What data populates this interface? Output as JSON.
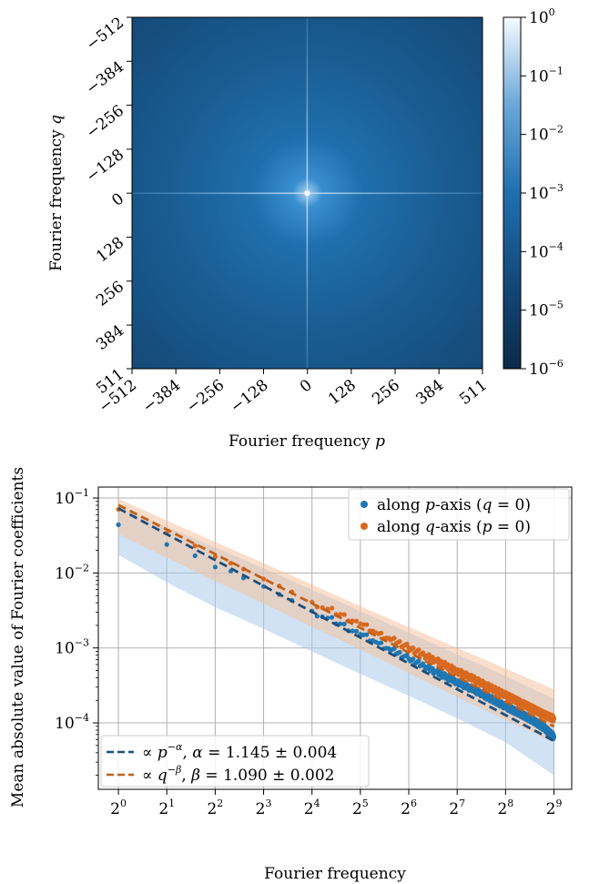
{
  "chart_data": [
    {
      "type": "heatmap",
      "title": "",
      "xlabel": "Fourier frequency",
      "xlabel_var": "p",
      "ylabel": "Fourier frequency",
      "ylabel_var": "q",
      "x_ticks": [
        "−512",
        "−384",
        "−256",
        "−128",
        "0",
        "128",
        "256",
        "384",
        "511"
      ],
      "y_ticks": [
        "−512",
        "−384",
        "−256",
        "−128",
        "0",
        "128",
        "256",
        "384",
        "511"
      ],
      "xlim": [
        -512,
        511
      ],
      "ylim": [
        -512,
        511
      ],
      "y_inverted": true,
      "colorbar": {
        "scale": "log",
        "range": [
          1e-06,
          1
        ],
        "ticks": [
          {
            "value": 1,
            "base": "10",
            "exp": "0"
          },
          {
            "value": 0.1,
            "base": "10",
            "exp": "−1"
          },
          {
            "value": 0.01,
            "base": "10",
            "exp": "−2"
          },
          {
            "value": 0.001,
            "base": "10",
            "exp": "−3"
          },
          {
            "value": 0.0001,
            "base": "10",
            "exp": "−4"
          },
          {
            "value": 1e-05,
            "base": "10",
            "exp": "−5"
          },
          {
            "value": 1e-06,
            "base": "10",
            "exp": "−6"
          }
        ],
        "colors": [
          "#0b2a47",
          "#1f6fb0",
          "#f7fbff"
        ]
      },
      "description_values": {
        "center_peak": 0.1,
        "background": 1e-05
      }
    },
    {
      "type": "scatter",
      "xscale": "log2",
      "yscale": "log",
      "xlabel": "Fourier frequency",
      "ylabel": "Mean absolute value of Fourier coefficients",
      "xlim": [
        0.75,
        660
      ],
      "ylim": [
        1.3e-05,
        0.14
      ],
      "grid": true,
      "x_ticks": [
        {
          "value": 1,
          "base": "2",
          "exp": "0"
        },
        {
          "value": 2,
          "base": "2",
          "exp": "1"
        },
        {
          "value": 4,
          "base": "2",
          "exp": "2"
        },
        {
          "value": 8,
          "base": "2",
          "exp": "3"
        },
        {
          "value": 16,
          "base": "2",
          "exp": "4"
        },
        {
          "value": 32,
          "base": "2",
          "exp": "5"
        },
        {
          "value": 64,
          "base": "2",
          "exp": "6"
        },
        {
          "value": 128,
          "base": "2",
          "exp": "7"
        },
        {
          "value": 256,
          "base": "2",
          "exp": "8"
        },
        {
          "value": 512,
          "base": "2",
          "exp": "9"
        }
      ],
      "y_ticks": [
        {
          "value": 0.1,
          "base": "10",
          "exp": "−1"
        },
        {
          "value": 0.01,
          "base": "10",
          "exp": "−2"
        },
        {
          "value": 0.001,
          "base": "10",
          "exp": "−3"
        },
        {
          "value": 0.0001,
          "base": "10",
          "exp": "−4"
        }
      ],
      "series": [
        {
          "name": "along p-axis (q = 0)",
          "color": "#1f77b4",
          "points": [
            [
              1,
              0.044
            ],
            [
              2,
              0.024
            ],
            [
              3,
              0.017
            ],
            [
              4,
              0.012
            ],
            [
              5,
              0.0106
            ],
            [
              6,
              0.0086
            ],
            [
              8,
              0.0066
            ],
            [
              10,
              0.0052
            ],
            [
              12,
              0.0043
            ],
            [
              16,
              0.0031
            ],
            [
              20,
              0.0025
            ],
            [
              24,
              0.0021
            ],
            [
              32,
              0.00152
            ],
            [
              40,
              0.0012
            ],
            [
              48,
              0.00098
            ],
            [
              64,
              0.00072
            ],
            [
              80,
              0.00057
            ],
            [
              96,
              0.00047
            ],
            [
              128,
              0.00035
            ],
            [
              160,
              0.00028
            ],
            [
              192,
              0.00023
            ],
            [
              256,
              0.000165
            ],
            [
              320,
              0.000131
            ],
            [
              384,
              0.000106
            ],
            [
              448,
              8.5e-05
            ],
            [
              512,
              6.5e-05
            ]
          ],
          "band_lower": [
            [
              1,
              0.0175
            ],
            [
              2,
              0.0075
            ],
            [
              4,
              0.0035
            ],
            [
              8,
              0.0018
            ],
            [
              16,
              0.0009
            ],
            [
              32,
              0.00045
            ],
            [
              64,
              0.00023
            ],
            [
              128,
              0.000115
            ],
            [
              256,
              5.5e-05
            ],
            [
              512,
              2e-05
            ]
          ],
          "band_upper": [
            [
              1,
              0.075
            ],
            [
              2,
              0.041
            ],
            [
              4,
              0.022
            ],
            [
              8,
              0.0115
            ],
            [
              16,
              0.006
            ],
            [
              32,
              0.0031
            ],
            [
              64,
              0.0016
            ],
            [
              128,
              0.00082
            ],
            [
              256,
              0.00042
            ],
            [
              512,
              0.00021
            ]
          ]
        },
        {
          "name": "along q-axis (p = 0)",
          "color": "#d9691f",
          "points": [
            [
              1,
              0.0705
            ],
            [
              2,
              0.034
            ],
            [
              3,
              0.023
            ],
            [
              4,
              0.0165
            ],
            [
              5,
              0.0135
            ],
            [
              6,
              0.0113
            ],
            [
              8,
              0.0083
            ],
            [
              10,
              0.0067
            ],
            [
              12,
              0.0056
            ],
            [
              16,
              0.0041
            ],
            [
              20,
              0.0033
            ],
            [
              24,
              0.0028
            ],
            [
              32,
              0.0021
            ],
            [
              40,
              0.0016
            ],
            [
              48,
              0.00135
            ],
            [
              64,
              0.00101
            ],
            [
              80,
              0.0008
            ],
            [
              96,
              0.00067
            ],
            [
              128,
              0.00049
            ],
            [
              160,
              0.00039
            ],
            [
              192,
              0.00032
            ],
            [
              256,
              0.000235
            ],
            [
              320,
              0.000185
            ],
            [
              384,
              0.000152
            ],
            [
              448,
              0.000128
            ],
            [
              512,
              0.000114
            ]
          ],
          "band_lower": [
            [
              1,
              0.033
            ],
            [
              2,
              0.016
            ],
            [
              4,
              0.0078
            ],
            [
              8,
              0.0039
            ],
            [
              16,
              0.0019
            ],
            [
              32,
              0.00095
            ],
            [
              64,
              0.00046
            ],
            [
              128,
              0.00022
            ],
            [
              256,
              0.00011
            ],
            [
              512,
              5.5e-05
            ]
          ],
          "band_upper": [
            [
              1,
              0.098
            ],
            [
              2,
              0.05
            ],
            [
              4,
              0.026
            ],
            [
              8,
              0.0135
            ],
            [
              16,
              0.007
            ],
            [
              32,
              0.0036
            ],
            [
              64,
              0.0019
            ],
            [
              128,
              0.001
            ],
            [
              256,
              0.00053
            ],
            [
              512,
              0.00028
            ]
          ]
        }
      ],
      "fits": [
        {
          "name": "∝ p^−α, α = 1.145 ± 0.004",
          "color": "#1f4e79",
          "amp": 0.0727,
          "exp": 1.145
        },
        {
          "name": "∝ q^−β, β = 1.090 ± 0.002",
          "color": "#c0601a",
          "amp": 0.0808,
          "exp": 1.09
        }
      ]
    }
  ],
  "legend1": {
    "p_prefix": "along ",
    "p_var": "p",
    "p_suffix": "-axis (",
    "p_cond_var": "q",
    "p_cond": " = 0)",
    "q_prefix": "along ",
    "q_var": "q",
    "q_suffix": "-axis (",
    "q_cond_var": "p",
    "q_cond": " = 0)"
  },
  "legend2": {
    "fit1_prop": "∝ ",
    "fit1_var": "p",
    "fit1_sup": "−α",
    "fit1_sym": "α",
    "fit1_val": " = 1.145 ± 0.004",
    "fit2_prop": "∝ ",
    "fit2_var": "q",
    "fit2_sup": "−β",
    "fit2_sym": "β",
    "fit2_val": " = 1.090 ± 0.002"
  }
}
